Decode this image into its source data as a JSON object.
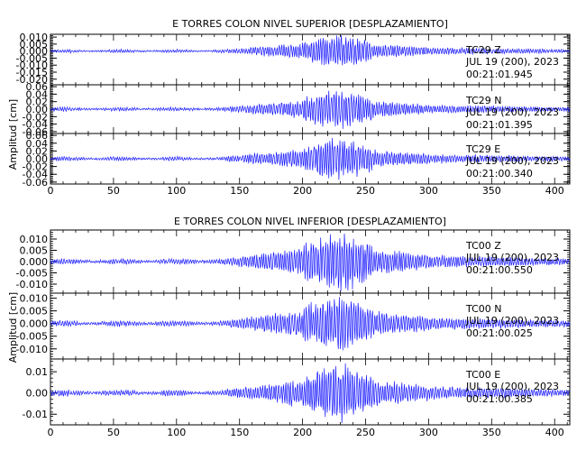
{
  "chart_data": [
    {
      "type": "line",
      "title": "E TORRES COLON NIVEL SUPERIOR [DESPLAZAMIENTO]",
      "ylabel": "Amplitud [cm]",
      "xlabel": "",
      "xlim": [
        0,
        412
      ],
      "x_ticks": [
        "0",
        "50",
        "100",
        "150",
        "200",
        "250",
        "300",
        "350",
        "400"
      ],
      "line_color": "#1a1aff",
      "panels": [
        {
          "station": "TC29",
          "component": "Z",
          "date": "JUL 19 (200), 2023",
          "time": "00:21:01.945",
          "ylim": [
            -0.024,
            0.012
          ],
          "y_ticks": [
            "0.010",
            "0.005",
            "0.000",
            "-0.005",
            "-0.010",
            "-0.015",
            "-0.020"
          ],
          "peak_amplitude": 0.011,
          "seed": 3
        },
        {
          "station": "TC29",
          "component": "N",
          "date": "JUL 19 (200), 2023",
          "time": "00:21:01.395",
          "ylim": [
            -0.065,
            0.065
          ],
          "y_ticks": [
            "0.06",
            "0.04",
            "0.02",
            "0.00",
            "-0.02",
            "-0.04",
            "-0.06"
          ],
          "peak_amplitude": 0.05,
          "seed": 7
        },
        {
          "station": "TC29",
          "component": "E",
          "date": "JUL 19 (200), 2023",
          "time": "00:21:00.340",
          "ylim": [
            -0.065,
            0.065
          ],
          "y_ticks": [
            "0.06",
            "0.04",
            "0.02",
            "0.00",
            "-0.02",
            "-0.04",
            "-0.06"
          ],
          "peak_amplitude": 0.05,
          "seed": 11
        }
      ]
    },
    {
      "type": "line",
      "title": "E TORRES COLON NIVEL INFERIOR [DESPLAZAMIENTO]",
      "ylabel": "Amplitud [cm]",
      "xlabel": "",
      "xlim": [
        0,
        412
      ],
      "x_ticks": [
        "0",
        "50",
        "100",
        "150",
        "200",
        "250",
        "300",
        "350",
        "400"
      ],
      "line_color": "#1a1aff",
      "panels": [
        {
          "station": "TC00",
          "component": "Z",
          "date": "JUL 19 (200), 2023",
          "time": "00:21:00.550",
          "ylim": [
            -0.014,
            0.014
          ],
          "y_ticks": [
            "0.010",
            "0.005",
            "0.000",
            "-0.005",
            "-0.010"
          ],
          "peak_amplitude": 0.0125,
          "seed": 5
        },
        {
          "station": "TC00",
          "component": "N",
          "date": "JUL 19 (200), 2023",
          "time": "00:21:00.025",
          "ylim": [
            -0.014,
            0.012
          ],
          "y_ticks": [
            "0.010",
            "0.005",
            "0.000",
            "-0.005",
            "-0.010"
          ],
          "peak_amplitude": 0.011,
          "seed": 9
        },
        {
          "station": "TC00",
          "component": "E",
          "date": "JUL 19 (200), 2023",
          "time": "00:21:00.385",
          "ylim": [
            -0.015,
            0.016
          ],
          "y_ticks": [
            "0.01",
            "0.00",
            "-0.01"
          ],
          "peak_amplitude": 0.0135,
          "seed": 13
        }
      ]
    }
  ]
}
